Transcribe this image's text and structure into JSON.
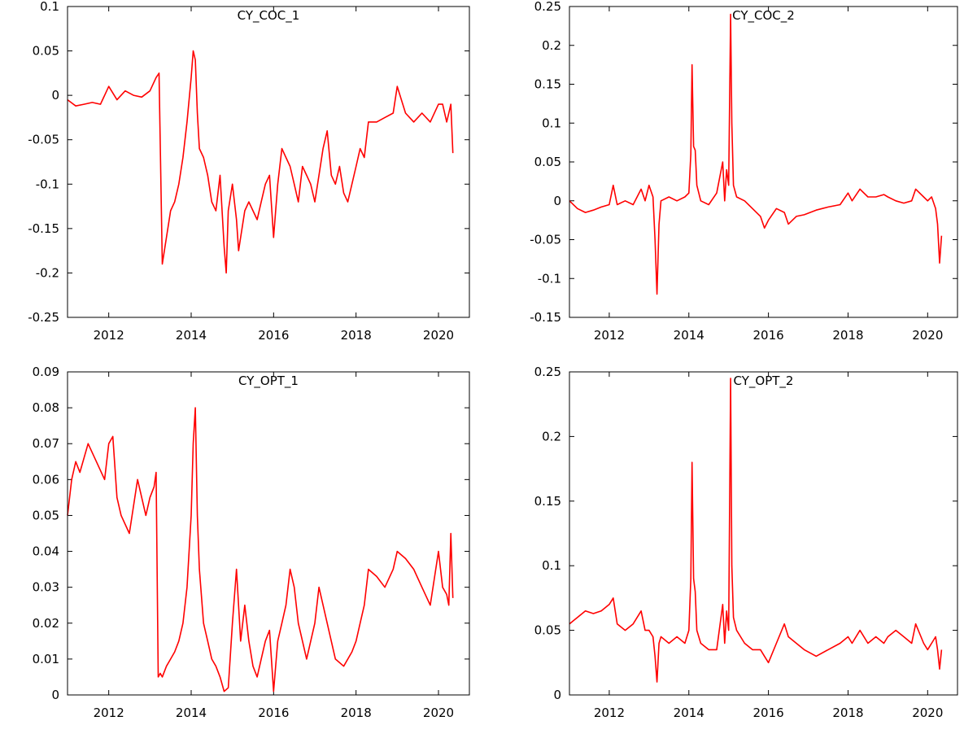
{
  "colors": {
    "series": "#ff0000",
    "axis": "#000000",
    "background": "#ffffff"
  },
  "chart_data": [
    {
      "type": "line",
      "title": "CY_COC_1",
      "xlabel": "",
      "ylabel": "",
      "xlim": [
        2011.0,
        2020.75
      ],
      "ylim": [
        -0.25,
        0.1
      ],
      "x_ticks": [
        2012,
        2014,
        2016,
        2018,
        2020
      ],
      "y_ticks": [
        -0.25,
        -0.2,
        -0.15,
        -0.1,
        -0.05,
        0,
        0.05,
        0.1
      ],
      "y_tick_labels": [
        "-0.25",
        "-0.2",
        "-0.15",
        "-0.1",
        "-0.05",
        "0",
        "0.05",
        "0.1"
      ],
      "grid": false,
      "series": [
        {
          "x": [
            2011.0,
            2011.2,
            2011.4,
            2011.6,
            2011.8,
            2012.0,
            2012.2,
            2012.4,
            2012.6,
            2012.8,
            2013.0,
            2013.15,
            2013.22,
            2013.3,
            2013.4,
            2013.5,
            2013.6,
            2013.7,
            2013.8,
            2013.9,
            2014.0,
            2014.05,
            2014.1,
            2014.15,
            2014.2,
            2014.3,
            2014.4,
            2014.5,
            2014.6,
            2014.7,
            2014.8,
            2014.85,
            2014.9,
            2015.0,
            2015.1,
            2015.15,
            2015.2,
            2015.3,
            2015.4,
            2015.5,
            2015.6,
            2015.7,
            2015.8,
            2015.9,
            2016.0,
            2016.1,
            2016.2,
            2016.3,
            2016.4,
            2016.5,
            2016.6,
            2016.7,
            2016.8,
            2016.9,
            2017.0,
            2017.1,
            2017.2,
            2017.3,
            2017.4,
            2017.5,
            2017.6,
            2017.7,
            2017.8,
            2017.9,
            2018.0,
            2018.1,
            2018.2,
            2018.3,
            2018.5,
            2018.7,
            2018.9,
            2019.0,
            2019.2,
            2019.4,
            2019.6,
            2019.8,
            2020.0,
            2020.1,
            2020.2,
            2020.25,
            2020.3,
            2020.35
          ],
          "y": [
            -0.005,
            -0.012,
            -0.01,
            -0.008,
            -0.01,
            0.01,
            -0.005,
            0.005,
            0.0,
            -0.002,
            0.005,
            0.02,
            0.025,
            -0.19,
            -0.16,
            -0.13,
            -0.12,
            -0.1,
            -0.07,
            -0.03,
            0.02,
            0.05,
            0.04,
            -0.02,
            -0.06,
            -0.07,
            -0.09,
            -0.12,
            -0.13,
            -0.09,
            -0.17,
            -0.2,
            -0.13,
            -0.1,
            -0.14,
            -0.175,
            -0.16,
            -0.13,
            -0.12,
            -0.13,
            -0.14,
            -0.12,
            -0.1,
            -0.09,
            -0.16,
            -0.1,
            -0.06,
            -0.07,
            -0.08,
            -0.1,
            -0.12,
            -0.08,
            -0.09,
            -0.1,
            -0.12,
            -0.09,
            -0.06,
            -0.04,
            -0.09,
            -0.1,
            -0.08,
            -0.11,
            -0.12,
            -0.1,
            -0.08,
            -0.06,
            -0.07,
            -0.03,
            -0.03,
            -0.025,
            -0.02,
            0.01,
            -0.02,
            -0.03,
            -0.02,
            -0.03,
            -0.01,
            -0.01,
            -0.03,
            -0.02,
            -0.01,
            -0.065
          ]
        }
      ]
    },
    {
      "type": "line",
      "title": "CY_COC_2",
      "xlabel": "",
      "ylabel": "",
      "xlim": [
        2011.0,
        2020.75
      ],
      "ylim": [
        -0.15,
        0.25
      ],
      "x_ticks": [
        2012,
        2014,
        2016,
        2018,
        2020
      ],
      "y_ticks": [
        -0.15,
        -0.1,
        -0.05,
        0,
        0.05,
        0.1,
        0.15,
        0.2,
        0.25
      ],
      "y_tick_labels": [
        "-0.15",
        "-0.1",
        "-0.05",
        "0",
        "0.05",
        "0.1",
        "0.15",
        "0.2",
        "0.25"
      ],
      "grid": false,
      "series": [
        {
          "x": [
            2011.0,
            2011.2,
            2011.4,
            2011.6,
            2011.8,
            2012.0,
            2012.1,
            2012.2,
            2012.4,
            2012.6,
            2012.8,
            2012.9,
            2013.0,
            2013.1,
            2013.15,
            2013.2,
            2013.25,
            2013.3,
            2013.5,
            2013.7,
            2013.9,
            2014.0,
            2014.05,
            2014.08,
            2014.12,
            2014.16,
            2014.2,
            2014.3,
            2014.5,
            2014.7,
            2014.85,
            2014.9,
            2014.95,
            2015.0,
            2015.05,
            2015.08,
            2015.12,
            2015.2,
            2015.4,
            2015.6,
            2015.8,
            2015.9,
            2016.0,
            2016.2,
            2016.4,
            2016.5,
            2016.7,
            2016.9,
            2017.2,
            2017.5,
            2017.8,
            2018.0,
            2018.1,
            2018.3,
            2018.5,
            2018.7,
            2018.9,
            2019.0,
            2019.2,
            2019.4,
            2019.6,
            2019.7,
            2019.9,
            2020.0,
            2020.1,
            2020.2,
            2020.25,
            2020.3,
            2020.35
          ],
          "y": [
            0.0,
            -0.01,
            -0.015,
            -0.012,
            -0.008,
            -0.005,
            0.02,
            -0.005,
            0.0,
            -0.005,
            0.015,
            0.0,
            0.02,
            0.005,
            -0.05,
            -0.12,
            -0.03,
            0.0,
            0.005,
            0.0,
            0.005,
            0.01,
            0.06,
            0.175,
            0.07,
            0.065,
            0.02,
            0.0,
            -0.005,
            0.01,
            0.05,
            0.0,
            0.04,
            0.02,
            0.24,
            0.1,
            0.02,
            0.005,
            0.0,
            -0.01,
            -0.02,
            -0.035,
            -0.025,
            -0.01,
            -0.015,
            -0.03,
            -0.02,
            -0.018,
            -0.012,
            -0.008,
            -0.005,
            0.01,
            0.0,
            0.015,
            0.005,
            0.005,
            0.008,
            0.005,
            0.0,
            -0.003,
            0.0,
            0.015,
            0.005,
            0.0,
            0.005,
            -0.01,
            -0.03,
            -0.08,
            -0.045
          ]
        }
      ]
    },
    {
      "type": "line",
      "title": "CY_OPT_1",
      "xlabel": "",
      "ylabel": "",
      "xlim": [
        2011.0,
        2020.75
      ],
      "ylim": [
        0,
        0.09
      ],
      "x_ticks": [
        2012,
        2014,
        2016,
        2018,
        2020
      ],
      "y_ticks": [
        0,
        0.01,
        0.02,
        0.03,
        0.04,
        0.05,
        0.06,
        0.07,
        0.08,
        0.09
      ],
      "y_tick_labels": [
        "0",
        "0.01",
        "0.02",
        "0.03",
        "0.04",
        "0.05",
        "0.06",
        "0.07",
        "0.08",
        "0.09"
      ],
      "grid": false,
      "series": [
        {
          "x": [
            2011.0,
            2011.1,
            2011.2,
            2011.3,
            2011.5,
            2011.7,
            2011.9,
            2012.0,
            2012.1,
            2012.2,
            2012.3,
            2012.5,
            2012.7,
            2012.9,
            2013.0,
            2013.1,
            2013.15,
            2013.2,
            2013.25,
            2013.3,
            2013.4,
            2013.5,
            2013.6,
            2013.7,
            2013.8,
            2013.9,
            2014.0,
            2014.05,
            2014.1,
            2014.15,
            2014.2,
            2014.3,
            2014.4,
            2014.5,
            2014.6,
            2014.7,
            2014.8,
            2014.9,
            2015.0,
            2015.1,
            2015.2,
            2015.3,
            2015.4,
            2015.5,
            2015.6,
            2015.7,
            2015.8,
            2015.9,
            2016.0,
            2016.1,
            2016.2,
            2016.3,
            2016.4,
            2016.5,
            2016.6,
            2016.7,
            2016.8,
            2017.0,
            2017.1,
            2017.3,
            2017.5,
            2017.7,
            2017.9,
            2018.0,
            2018.1,
            2018.2,
            2018.3,
            2018.5,
            2018.7,
            2018.9,
            2019.0,
            2019.2,
            2019.4,
            2019.6,
            2019.8,
            2020.0,
            2020.1,
            2020.2,
            2020.25,
            2020.3,
            2020.35
          ],
          "y": [
            0.05,
            0.06,
            0.065,
            0.062,
            0.07,
            0.065,
            0.06,
            0.07,
            0.072,
            0.055,
            0.05,
            0.045,
            0.06,
            0.05,
            0.055,
            0.058,
            0.062,
            0.005,
            0.006,
            0.005,
            0.008,
            0.01,
            0.012,
            0.015,
            0.02,
            0.03,
            0.05,
            0.07,
            0.08,
            0.05,
            0.035,
            0.02,
            0.015,
            0.01,
            0.008,
            0.005,
            0.001,
            0.002,
            0.02,
            0.035,
            0.015,
            0.025,
            0.015,
            0.008,
            0.005,
            0.01,
            0.015,
            0.018,
            0.001,
            0.015,
            0.02,
            0.025,
            0.035,
            0.03,
            0.02,
            0.015,
            0.01,
            0.02,
            0.03,
            0.02,
            0.01,
            0.008,
            0.012,
            0.015,
            0.02,
            0.025,
            0.035,
            0.033,
            0.03,
            0.035,
            0.04,
            0.038,
            0.035,
            0.03,
            0.025,
            0.04,
            0.03,
            0.028,
            0.025,
            0.045,
            0.027
          ]
        }
      ]
    },
    {
      "type": "line",
      "title": "CY_OPT_2",
      "xlabel": "",
      "ylabel": "",
      "xlim": [
        2011.0,
        2020.75
      ],
      "ylim": [
        0,
        0.25
      ],
      "x_ticks": [
        2012,
        2014,
        2016,
        2018,
        2020
      ],
      "y_ticks": [
        0,
        0.05,
        0.1,
        0.15,
        0.2,
        0.25
      ],
      "y_tick_labels": [
        "0",
        "0.05",
        "0.1",
        "0.15",
        "0.2",
        "0.25"
      ],
      "grid": false,
      "series": [
        {
          "x": [
            2011.0,
            2011.2,
            2011.4,
            2011.6,
            2011.8,
            2012.0,
            2012.1,
            2012.2,
            2012.4,
            2012.6,
            2012.8,
            2012.9,
            2013.0,
            2013.1,
            2013.15,
            2013.2,
            2013.25,
            2013.3,
            2013.5,
            2013.7,
            2013.9,
            2014.0,
            2014.05,
            2014.08,
            2014.12,
            2014.16,
            2014.2,
            2014.3,
            2014.5,
            2014.7,
            2014.85,
            2014.9,
            2014.95,
            2015.0,
            2015.05,
            2015.08,
            2015.12,
            2015.2,
            2015.4,
            2015.6,
            2015.8,
            2015.9,
            2016.0,
            2016.2,
            2016.4,
            2016.5,
            2016.7,
            2016.9,
            2017.2,
            2017.5,
            2017.8,
            2018.0,
            2018.1,
            2018.3,
            2018.5,
            2018.7,
            2018.9,
            2019.0,
            2019.2,
            2019.4,
            2019.6,
            2019.7,
            2019.9,
            2020.0,
            2020.1,
            2020.2,
            2020.25,
            2020.3,
            2020.35
          ],
          "y": [
            0.055,
            0.06,
            0.065,
            0.063,
            0.065,
            0.07,
            0.075,
            0.055,
            0.05,
            0.055,
            0.065,
            0.05,
            0.05,
            0.045,
            0.03,
            0.01,
            0.04,
            0.045,
            0.04,
            0.045,
            0.04,
            0.05,
            0.09,
            0.18,
            0.09,
            0.08,
            0.05,
            0.04,
            0.035,
            0.035,
            0.07,
            0.04,
            0.065,
            0.05,
            0.245,
            0.1,
            0.06,
            0.05,
            0.04,
            0.035,
            0.035,
            0.03,
            0.025,
            0.04,
            0.055,
            0.045,
            0.04,
            0.035,
            0.03,
            0.035,
            0.04,
            0.045,
            0.04,
            0.05,
            0.04,
            0.045,
            0.04,
            0.045,
            0.05,
            0.045,
            0.04,
            0.055,
            0.04,
            0.035,
            0.04,
            0.045,
            0.035,
            0.02,
            0.035
          ]
        }
      ]
    }
  ]
}
